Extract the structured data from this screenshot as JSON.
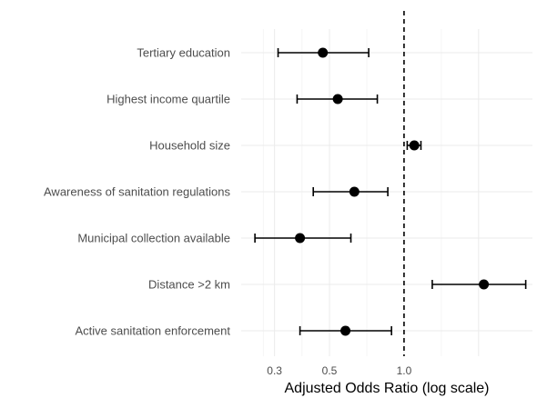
{
  "chart_data": {
    "type": "forest",
    "xlabel": "Adjusted Odds Ratio (log scale)",
    "x_scale": "log",
    "xlim": [
      0.22,
      3.3
    ],
    "xticks": [
      {
        "value": 0.3,
        "label": "0.3"
      },
      {
        "value": 0.5,
        "label": "0.5"
      },
      {
        "value": 1.0,
        "label": "1.0"
      }
    ],
    "reference_line": 1.0,
    "grid": true,
    "rows": [
      {
        "label": "Tertiary education",
        "or": 0.47,
        "lo": 0.31,
        "hi": 0.72
      },
      {
        "label": "Highest income quartile",
        "or": 0.54,
        "lo": 0.37,
        "hi": 0.78
      },
      {
        "label": "Household size",
        "or": 1.1,
        "lo": 1.03,
        "hi": 1.17
      },
      {
        "label": "Awareness of sanitation regulations",
        "or": 0.63,
        "lo": 0.43,
        "hi": 0.86
      },
      {
        "label": "Municipal collection available",
        "or": 0.38,
        "lo": 0.25,
        "hi": 0.61
      },
      {
        "label": "Distance >2 km",
        "or": 2.1,
        "lo": 1.3,
        "hi": 3.1
      },
      {
        "label": "Active sanitation enforcement",
        "or": 0.58,
        "lo": 0.38,
        "hi": 0.89
      }
    ]
  },
  "colors": {
    "point": "#000000",
    "errorbar": "#000000",
    "grid_major": "#ebebeb",
    "grid_minor": "#f5f5f5",
    "refline": "#000000"
  }
}
